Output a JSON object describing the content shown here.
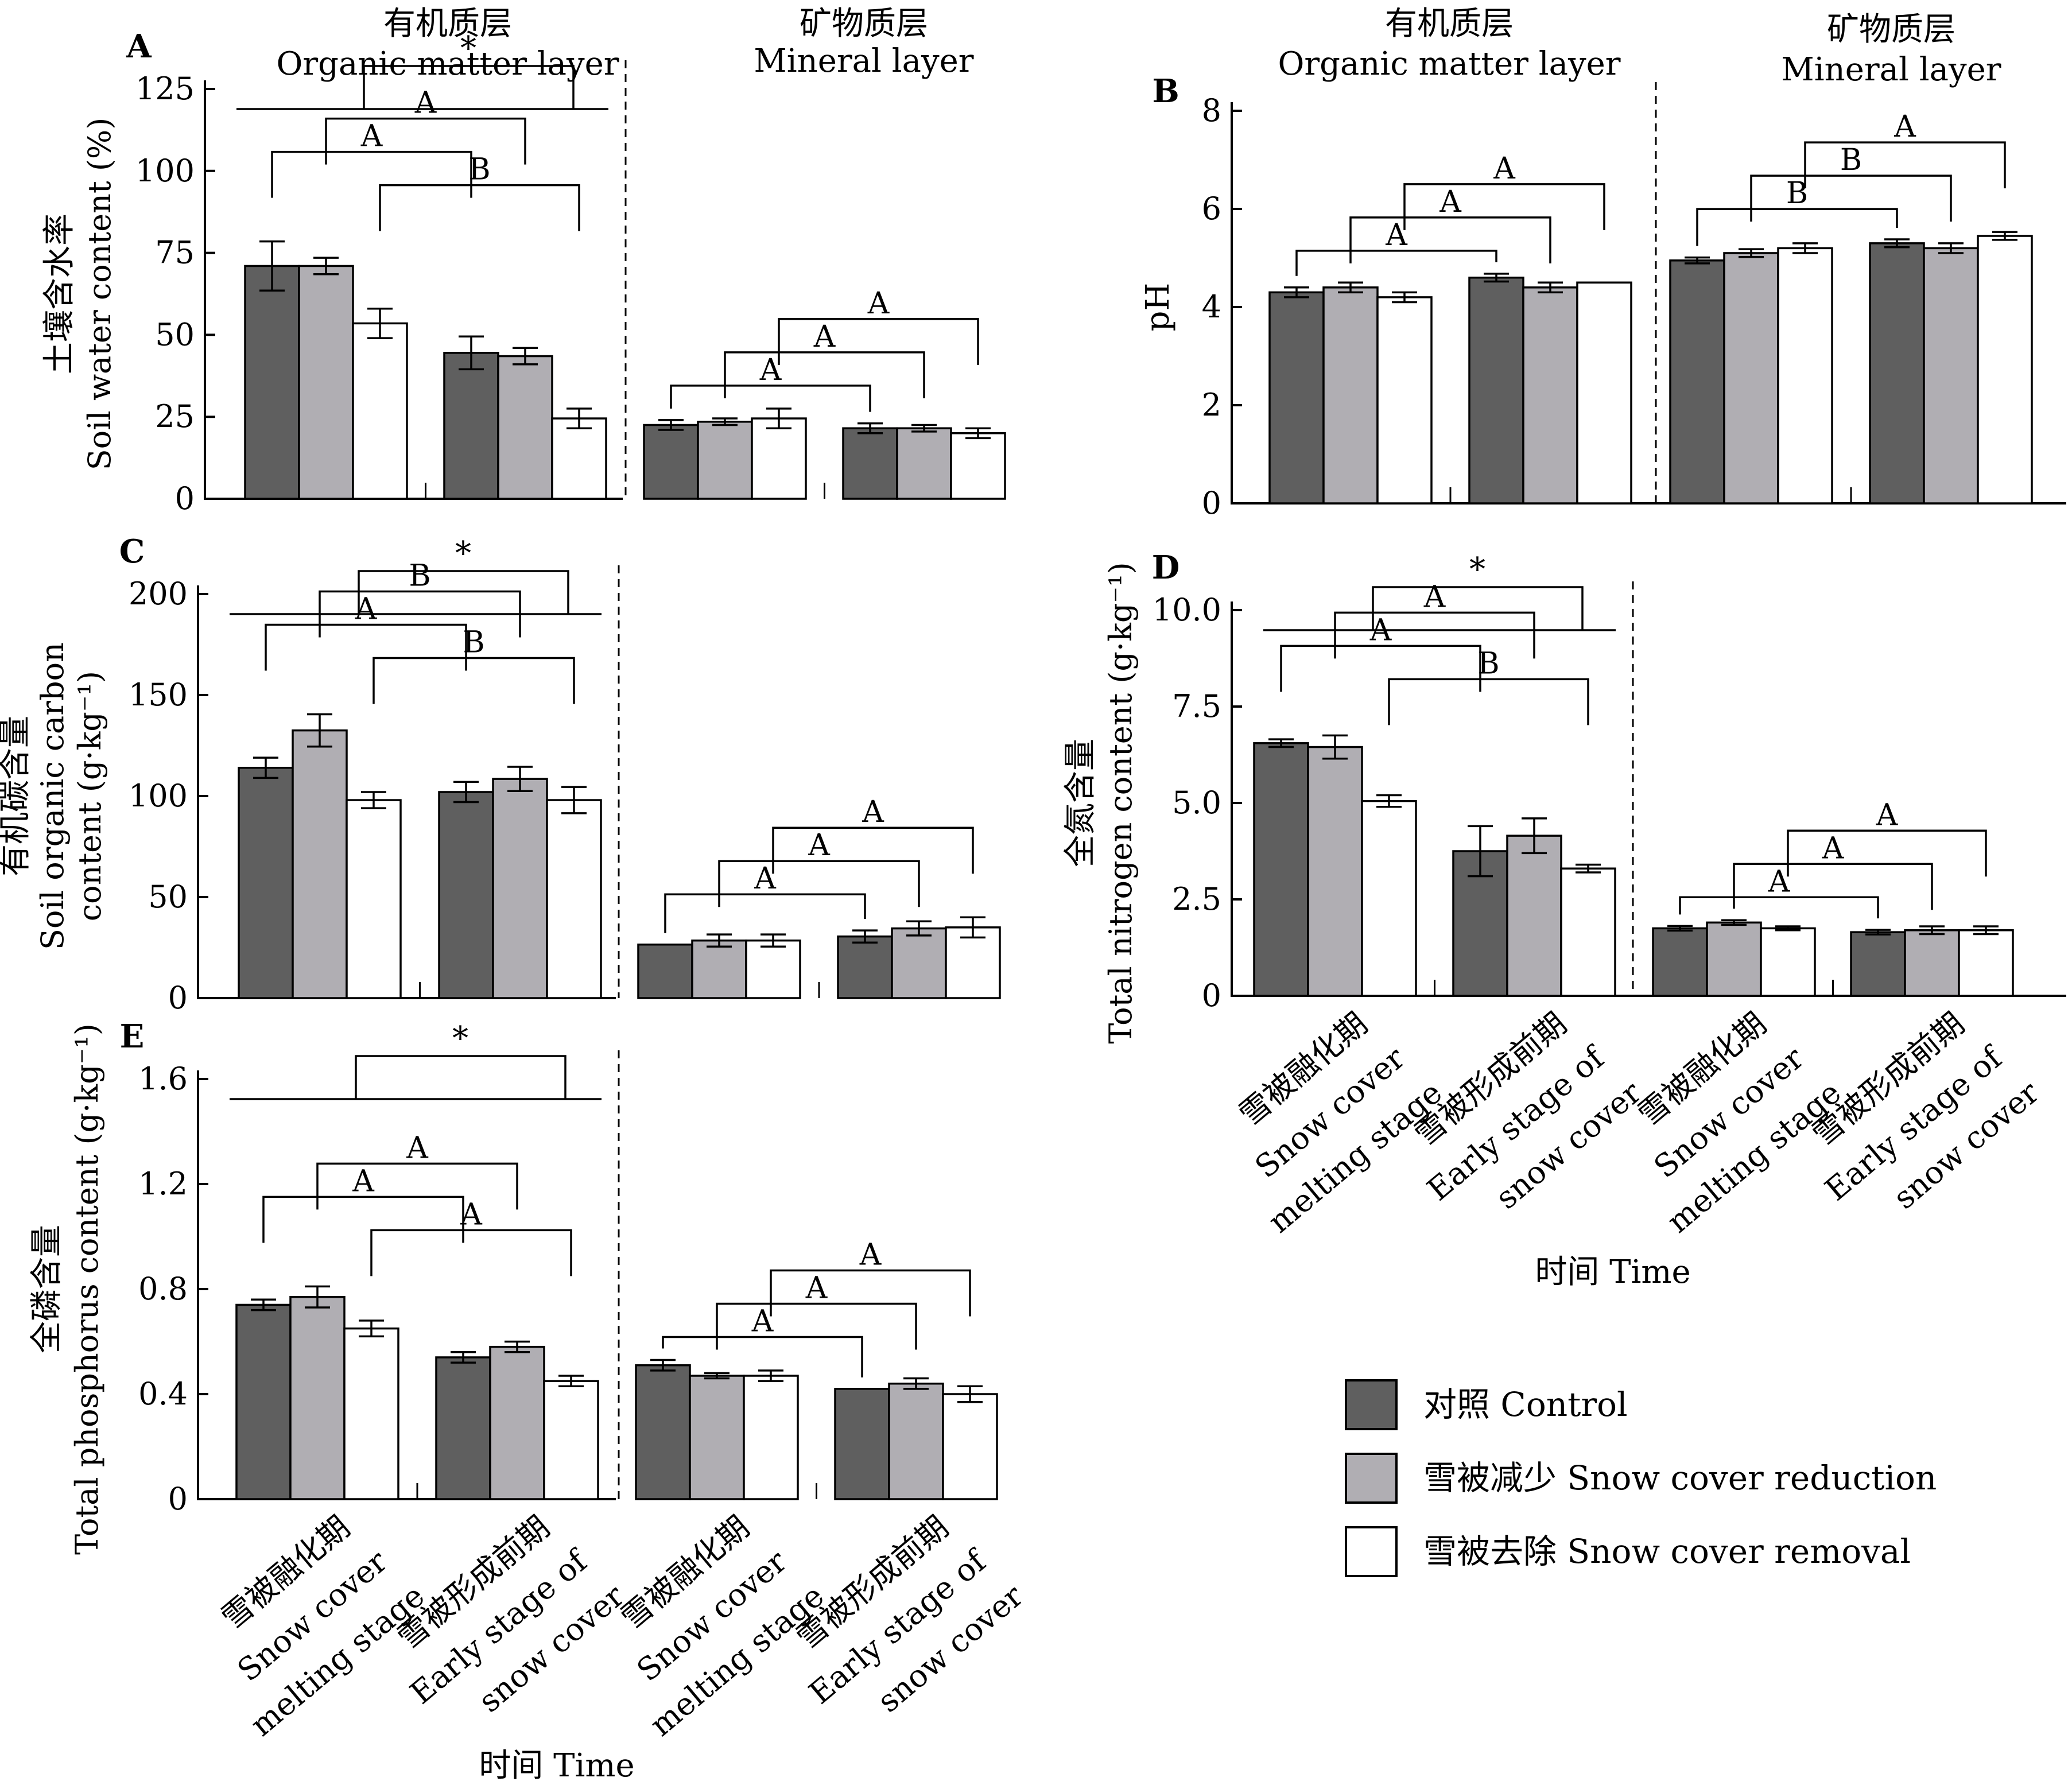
{
  "colors": {
    "control": "#5f5f5f",
    "reduction": "#b0aeb3",
    "removal": "#ffffff",
    "outline": "#000000"
  },
  "layer_headers": {
    "organic_zh": "有机质层",
    "organic_en": "Organic matter layer",
    "mineral_zh": "矿物质层",
    "mineral_en": "Mineral layer"
  },
  "time_title": "时间 Time",
  "stages": [
    [
      "雪被融化期",
      "Snow cover",
      "melting stage"
    ],
    [
      "雪被形成前期",
      "Early stage of",
      "snow cover"
    ],
    [
      "雪被融化期",
      "Snow cover",
      "melting stage"
    ],
    [
      "雪被形成前期",
      "Early stage of",
      "snow cover"
    ]
  ],
  "legend": [
    {
      "label": "对照 Control",
      "color": "#5f5f5f"
    },
    {
      "label": "雪被减少 Snow cover reduction",
      "color": "#b0aeb3"
    },
    {
      "label": "雪被去除 Snow cover removal",
      "color": "#ffffff"
    }
  ],
  "chart_data": [
    {
      "panel": "A",
      "type": "bar",
      "ylabel_zh": "土壤含水率",
      "ylabel_en": "Soil water content (%)",
      "ylim": [
        0,
        125
      ],
      "yticks": [
        "0",
        "25",
        "50",
        "75",
        "100",
        "125"
      ],
      "groups": [
        "Organic · Snow cover melting stage",
        "Organic · Early stage of snow cover",
        "Mineral · Snow cover melting stage",
        "Mineral · Early stage of snow cover"
      ],
      "series": [
        {
          "name": "对照 Control",
          "values": [
            71,
            44.5,
            22.5,
            21.5
          ],
          "errors": [
            7.5,
            5,
            1.5,
            1.5
          ]
        },
        {
          "name": "雪被减少 Snow cover reduction",
          "values": [
            71,
            43.5,
            23.5,
            21.5
          ],
          "errors": [
            2.5,
            2.5,
            1,
            1
          ]
        },
        {
          "name": "雪被去除 Snow cover removal",
          "values": [
            53.5,
            24.5,
            24.5,
            20
          ],
          "errors": [
            4.5,
            3,
            3,
            1.5
          ]
        }
      ],
      "letters": [
        "A",
        "A",
        "B",
        "A",
        "A",
        "A"
      ],
      "star": "*"
    },
    {
      "panel": "B",
      "type": "bar",
      "ylabel_en": "pH",
      "ylim": [
        0,
        8
      ],
      "yticks": [
        "0",
        "2",
        "4",
        "6",
        "8"
      ],
      "groups": [
        "Organic · Snow cover melting stage",
        "Organic · Early stage of snow cover",
        "Mineral · Snow cover melting stage",
        "Mineral · Early stage of snow cover"
      ],
      "series": [
        {
          "name": "对照 Control",
          "values": [
            4.3,
            4.6,
            4.95,
            5.3
          ],
          "errors": [
            0.1,
            0.08,
            0.06,
            0.08
          ]
        },
        {
          "name": "雪被减少 Snow cover reduction",
          "values": [
            4.4,
            4.4,
            5.1,
            5.2
          ],
          "errors": [
            0.1,
            0.1,
            0.08,
            0.1
          ]
        },
        {
          "name": "雪被去除 Snow cover removal",
          "values": [
            4.2,
            4.5,
            5.2,
            5.45
          ],
          "errors": [
            0.1,
            0,
            0.1,
            0.08
          ]
        }
      ],
      "letters": [
        "A",
        "A",
        "A",
        "B",
        "B",
        "A"
      ]
    },
    {
      "panel": "C",
      "type": "bar",
      "ylabel_zh": "有机碳含量",
      "ylabel_en1": "Soil organic carbon",
      "ylabel_en2": "content (g·kg⁻¹)",
      "ylim": [
        0,
        200
      ],
      "yticks": [
        "0",
        "50",
        "100",
        "150",
        "200"
      ],
      "groups": [
        "Organic · Snow cover melting stage",
        "Organic · Early stage of snow cover",
        "Mineral · Snow cover melting stage",
        "Mineral · Early stage of snow cover"
      ],
      "series": [
        {
          "name": "对照 Control",
          "values": [
            114,
            102,
            26.5,
            30.5
          ],
          "errors": [
            5,
            5,
            0,
            3
          ]
        },
        {
          "name": "雪被减少 Snow cover reduction",
          "values": [
            132.5,
            108.5,
            28.5,
            34.5
          ],
          "errors": [
            8,
            6,
            3,
            3.5
          ]
        },
        {
          "name": "雪被去除 Snow cover removal",
          "values": [
            98,
            98,
            28.5,
            35
          ],
          "errors": [
            4,
            6.5,
            3,
            5
          ]
        }
      ],
      "letters": [
        "A",
        "B",
        "B",
        "A",
        "A",
        "A"
      ],
      "star": "*"
    },
    {
      "panel": "D",
      "type": "bar",
      "ylabel_zh": "全氮含量",
      "ylabel_en": "Total nitrogen content (g·kg⁻¹)",
      "ylim": [
        0,
        10
      ],
      "yticks": [
        "0",
        "2.5",
        "5.0",
        "7.5",
        "10.0"
      ],
      "groups": [
        "Organic · Snow cover melting stage",
        "Organic · Early stage of snow cover",
        "Mineral · Snow cover melting stage",
        "Mineral · Early stage of snow cover"
      ],
      "series": [
        {
          "name": "对照 Control",
          "values": [
            6.55,
            3.75,
            1.75,
            1.65
          ],
          "errors": [
            0.1,
            0.65,
            0.06,
            0.06
          ]
        },
        {
          "name": "雪被减少 Snow cover reduction",
          "values": [
            6.45,
            4.15,
            1.9,
            1.7
          ],
          "errors": [
            0.3,
            0.45,
            0.06,
            0.1
          ]
        },
        {
          "name": "雪被去除 Snow cover removal",
          "values": [
            5.05,
            3.3,
            1.75,
            1.7
          ],
          "errors": [
            0.15,
            0.1,
            0.05,
            0.1
          ]
        }
      ],
      "letters": [
        "A",
        "A",
        "B",
        "A",
        "A",
        "A"
      ],
      "star": "*"
    },
    {
      "panel": "E",
      "type": "bar",
      "ylabel_zh": "全磷含量",
      "ylabel_en": "Total phosphorus content (g·kg⁻¹)",
      "ylim": [
        0,
        1.6
      ],
      "yticks": [
        "0",
        "0.4",
        "0.8",
        "1.2",
        "1.6"
      ],
      "groups": [
        "Organic · Snow cover melting stage",
        "Organic · Early stage of snow cover",
        "Mineral · Snow cover melting stage",
        "Mineral · Early stage of snow cover"
      ],
      "series": [
        {
          "name": "对照 Control",
          "values": [
            0.74,
            0.54,
            0.51,
            0.42
          ],
          "errors": [
            0.02,
            0.02,
            0.02,
            0
          ]
        },
        {
          "name": "雪被减少 Snow cover reduction",
          "values": [
            0.77,
            0.58,
            0.47,
            0.44
          ],
          "errors": [
            0.04,
            0.02,
            0.01,
            0.02
          ]
        },
        {
          "name": "雪被去除 Snow cover removal",
          "values": [
            0.65,
            0.45,
            0.47,
            0.4
          ],
          "errors": [
            0.03,
            0.02,
            0.02,
            0.03
          ]
        }
      ],
      "letters": [
        "A",
        "A",
        "A",
        "A",
        "A",
        "A"
      ],
      "star": "*"
    }
  ]
}
